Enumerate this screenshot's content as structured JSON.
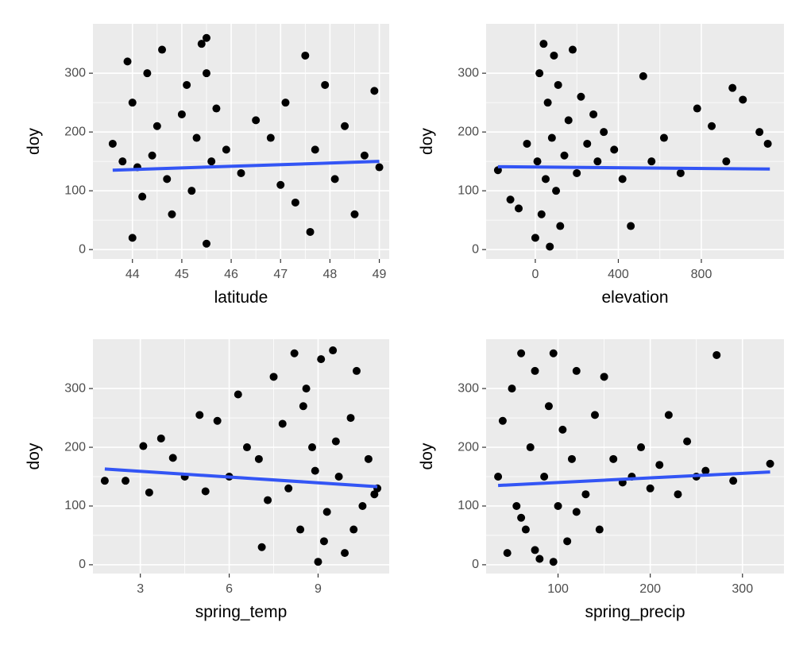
{
  "chart_data": [
    {
      "type": "scatter",
      "x_label": "latitude",
      "y_label": "doy",
      "xlim": [
        43.2,
        49.2
      ],
      "ylim": [
        -16,
        384
      ],
      "xticks": [
        44,
        45,
        46,
        47,
        48,
        49
      ],
      "yticks": [
        0,
        100,
        200,
        300
      ],
      "grid": true,
      "points": {
        "color": "#000000",
        "x": [
          43.6,
          43.8,
          43.9,
          44.0,
          44.0,
          44.1,
          44.2,
          44.3,
          44.4,
          44.5,
          44.6,
          44.7,
          44.8,
          45.0,
          45.1,
          45.2,
          45.3,
          45.4,
          45.5,
          45.5,
          45.6,
          45.7,
          45.9,
          46.2,
          46.5,
          46.8,
          47.0,
          47.1,
          47.3,
          47.5,
          47.6,
          47.7,
          47.9,
          48.1,
          48.3,
          48.5,
          48.7,
          48.9,
          49.0,
          45.5
        ],
        "y": [
          180,
          150,
          320,
          20,
          250,
          140,
          90,
          300,
          160,
          210,
          340,
          120,
          60,
          230,
          280,
          100,
          190,
          350,
          10,
          360,
          150,
          240,
          170,
          130,
          220,
          190,
          110,
          250,
          80,
          330,
          30,
          170,
          280,
          120,
          210,
          60,
          160,
          270,
          140,
          300
        ]
      },
      "fit": {
        "color": "#3355f5",
        "x": [
          43.6,
          49.0
        ],
        "y": [
          135,
          150
        ]
      }
    },
    {
      "type": "scatter",
      "x_label": "elevation",
      "y_label": "doy",
      "xlim": [
        -237,
        1198
      ],
      "ylim": [
        -16,
        384
      ],
      "xticks": [
        0,
        400,
        800
      ],
      "yticks": [
        0,
        100,
        200,
        300
      ],
      "grid": true,
      "points": {
        "color": "#000000",
        "x": [
          -180,
          -120,
          -80,
          -40,
          0,
          10,
          20,
          30,
          40,
          50,
          60,
          70,
          80,
          90,
          100,
          110,
          120,
          140,
          160,
          180,
          200,
          220,
          250,
          280,
          300,
          330,
          380,
          420,
          460,
          520,
          560,
          620,
          700,
          780,
          850,
          920,
          950,
          1000,
          1080,
          1120
        ],
        "y": [
          135,
          85,
          70,
          180,
          20,
          150,
          300,
          60,
          350,
          120,
          250,
          5,
          190,
          330,
          100,
          280,
          40,
          160,
          220,
          340,
          130,
          260,
          180,
          230,
          150,
          200,
          170,
          120,
          40,
          295,
          150,
          190,
          130,
          240,
          210,
          150,
          275,
          255,
          200,
          180
        ]
      },
      "fit": {
        "color": "#3355f5",
        "x": [
          -180,
          1130
        ],
        "y": [
          141,
          137
        ]
      }
    },
    {
      "type": "scatter",
      "x_label": "spring_temp",
      "y_label": "doy",
      "xlim": [
        1.4,
        11.4
      ],
      "ylim": [
        -15,
        384
      ],
      "xticks": [
        3,
        6,
        9
      ],
      "yticks": [
        0,
        100,
        200,
        300
      ],
      "grid": true,
      "points": {
        "color": "#000000",
        "x": [
          1.8,
          2.5,
          3.1,
          3.3,
          3.7,
          4.1,
          4.5,
          5.0,
          5.2,
          5.6,
          6.0,
          6.3,
          6.6,
          7.0,
          7.3,
          7.5,
          7.8,
          8.0,
          8.2,
          8.4,
          8.6,
          8.8,
          9.0,
          9.1,
          9.3,
          9.5,
          9.7,
          9.9,
          10.1,
          10.3,
          10.5,
          10.7,
          10.9,
          11.0,
          8.5,
          9.2,
          7.1,
          8.9,
          10.2,
          9.6
        ],
        "y": [
          143,
          143,
          202,
          123,
          215,
          182,
          150,
          255,
          125,
          245,
          150,
          290,
          200,
          180,
          110,
          320,
          240,
          130,
          360,
          60,
          300,
          200,
          5,
          350,
          90,
          365,
          150,
          20,
          250,
          330,
          100,
          180,
          120,
          130,
          270,
          40,
          30,
          160,
          60,
          210
        ]
      },
      "fit": {
        "color": "#3355f5",
        "x": [
          1.8,
          11.0
        ],
        "y": [
          163,
          133
        ]
      }
    },
    {
      "type": "scatter",
      "x_label": "spring_precip",
      "y_label": "doy",
      "xlim": [
        22,
        345
      ],
      "ylim": [
        -15,
        384
      ],
      "xticks": [
        100,
        200,
        300
      ],
      "yticks": [
        0,
        100,
        200,
        300
      ],
      "grid": true,
      "points": {
        "color": "#000000",
        "x": [
          35,
          40,
          45,
          50,
          55,
          60,
          65,
          70,
          75,
          80,
          85,
          90,
          95,
          100,
          105,
          110,
          115,
          120,
          130,
          140,
          150,
          160,
          170,
          180,
          190,
          200,
          210,
          220,
          230,
          240,
          250,
          260,
          272,
          290,
          330,
          60,
          75,
          95,
          120,
          145
        ],
        "y": [
          150,
          245,
          20,
          300,
          100,
          360,
          60,
          200,
          330,
          10,
          150,
          270,
          360,
          100,
          230,
          40,
          180,
          330,
          120,
          255,
          320,
          180,
          140,
          150,
          200,
          130,
          170,
          255,
          120,
          210,
          150,
          160,
          357,
          143,
          172,
          80,
          25,
          5,
          90,
          60
        ]
      },
      "fit": {
        "color": "#3355f5",
        "x": [
          35,
          330
        ],
        "y": [
          135,
          158
        ]
      }
    }
  ]
}
